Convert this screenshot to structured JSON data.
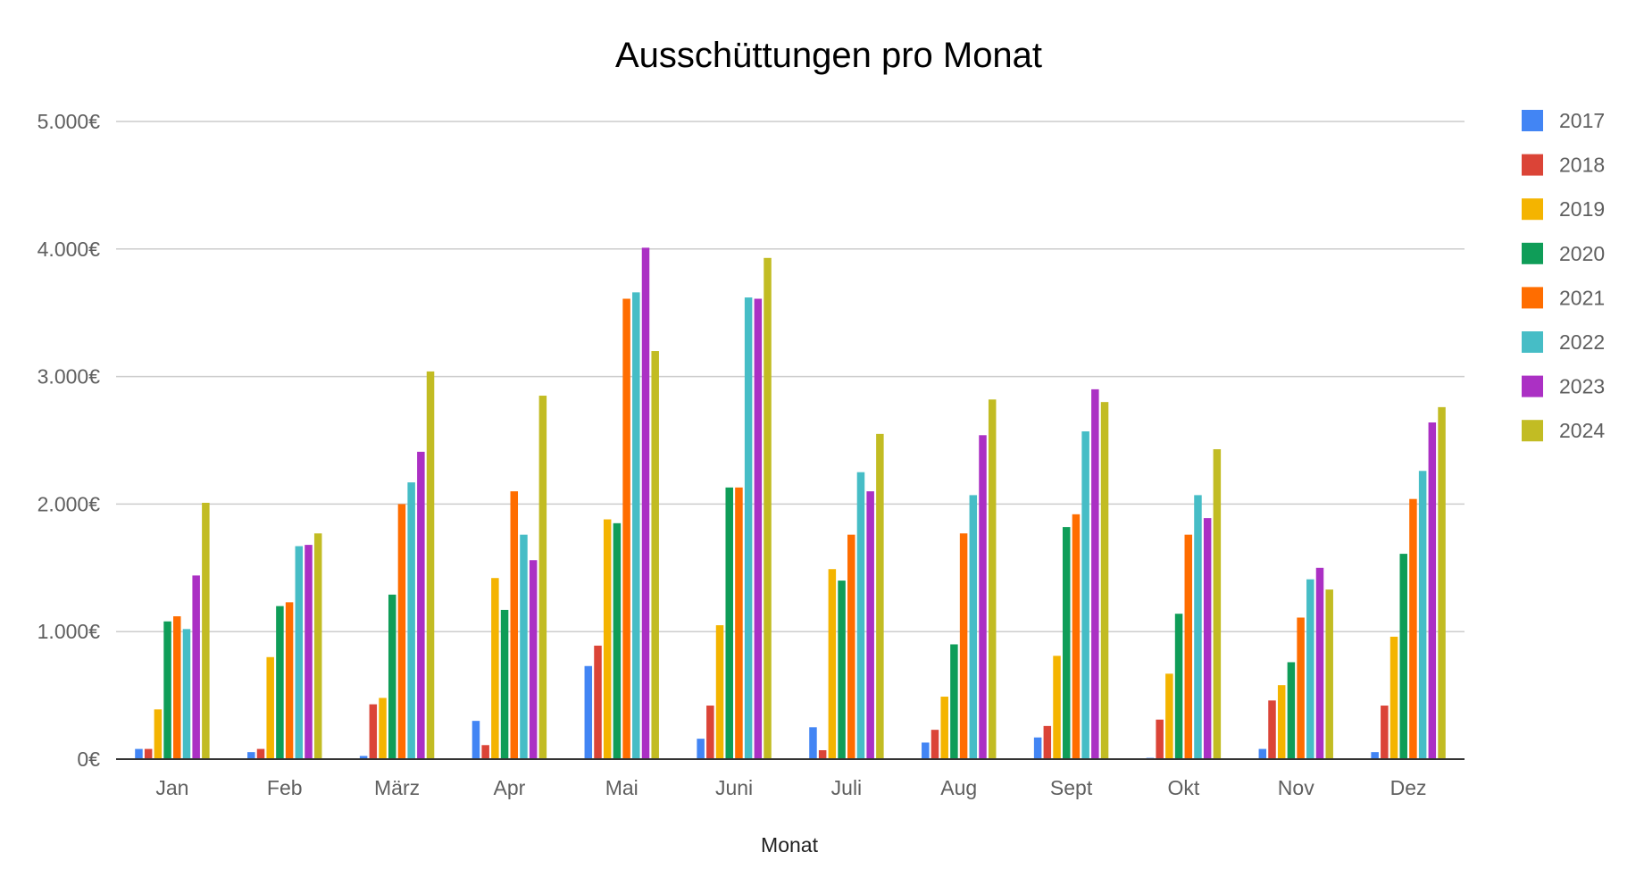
{
  "chart_data": {
    "type": "bar",
    "title": "Ausschüttungen pro Monat",
    "xlabel": "Monat",
    "ylabel": "",
    "ylim": [
      0,
      5000
    ],
    "y_ticks": [
      0,
      1000,
      2000,
      3000,
      4000,
      5000
    ],
    "y_tick_labels": [
      "0€",
      "1.000€",
      "2.000€",
      "3.000€",
      "4.000€",
      "5.000€"
    ],
    "grid": true,
    "legend_position": "right",
    "categories": [
      "Jan",
      "Feb",
      "März",
      "Apr",
      "Mai",
      "Juni",
      "Juli",
      "Aug",
      "Sept",
      "Okt",
      "Nov",
      "Dez"
    ],
    "series": [
      {
        "name": "2017",
        "color": "#4285f4",
        "values": [
          80,
          55,
          25,
          300,
          730,
          160,
          250,
          130,
          170,
          10,
          80,
          55
        ]
      },
      {
        "name": "2018",
        "color": "#db4437",
        "values": [
          80,
          80,
          430,
          110,
          890,
          420,
          70,
          230,
          260,
          310,
          460,
          420
        ]
      },
      {
        "name": "2019",
        "color": "#f4b400",
        "values": [
          390,
          800,
          480,
          1420,
          1880,
          1050,
          1490,
          490,
          810,
          670,
          580,
          960
        ]
      },
      {
        "name": "2020",
        "color": "#0f9d58",
        "values": [
          1080,
          1200,
          1290,
          1170,
          1850,
          2130,
          1400,
          900,
          1820,
          1140,
          760,
          1610
        ]
      },
      {
        "name": "2021",
        "color": "#ff6d00",
        "values": [
          1120,
          1230,
          2000,
          2100,
          3610,
          2130,
          1760,
          1770,
          1920,
          1760,
          1110,
          2040
        ]
      },
      {
        "name": "2022",
        "color": "#46bdc6",
        "values": [
          1020,
          1670,
          2170,
          1760,
          3660,
          3620,
          2250,
          2070,
          2570,
          2070,
          1410,
          2260
        ]
      },
      {
        "name": "2023",
        "color": "#ab30c4",
        "values": [
          1440,
          1680,
          2410,
          1560,
          4010,
          3610,
          2100,
          2540,
          2900,
          1890,
          1500,
          2640
        ]
      },
      {
        "name": "2024",
        "color": "#c2bc23",
        "values": [
          2010,
          1770,
          3040,
          2850,
          3200,
          3930,
          2550,
          2820,
          2800,
          2430,
          1330,
          2760
        ]
      }
    ]
  }
}
